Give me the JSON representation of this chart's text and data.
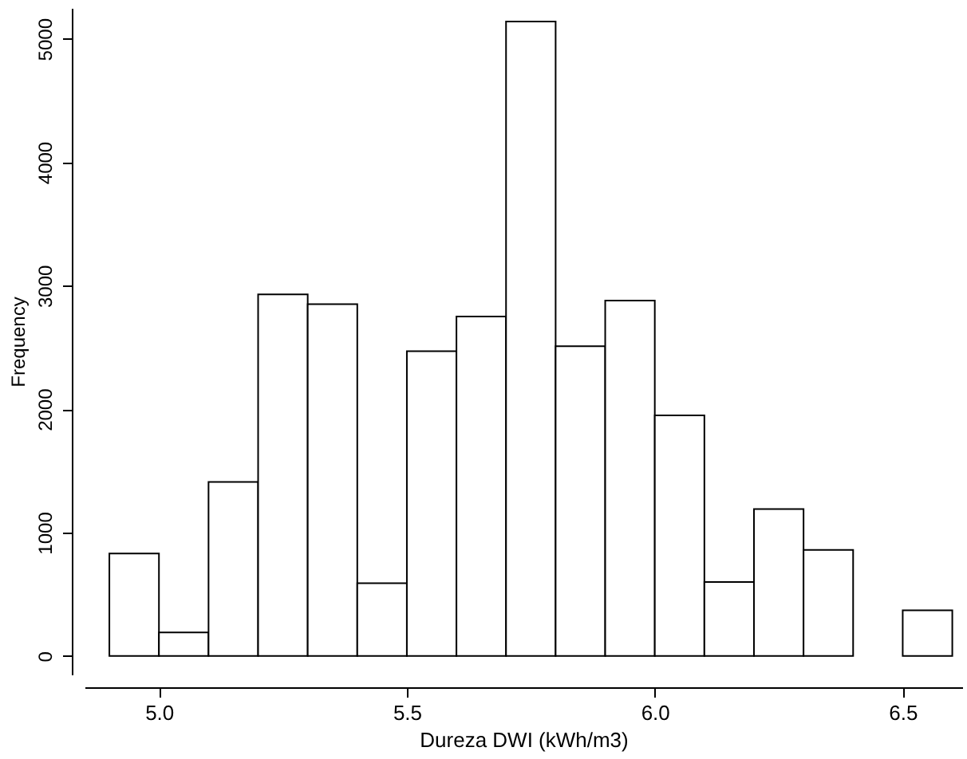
{
  "chart_data": {
    "type": "histogram",
    "xlabel": "Dureza DWI (kWh/m3)",
    "ylabel": "Frequency",
    "bins": [
      4.9,
      5.0,
      5.1,
      5.2,
      5.3,
      5.4,
      5.5,
      5.6,
      5.7,
      5.8,
      5.9,
      6.0,
      6.1,
      6.2,
      6.3,
      6.4,
      6.5,
      6.6
    ],
    "values": [
      830,
      190,
      1410,
      2930,
      2850,
      590,
      2470,
      2750,
      5140,
      2510,
      2880,
      1950,
      600,
      1190,
      860,
      0,
      370
    ],
    "color": "#ffffff",
    "xlim": [
      4.85,
      6.62
    ],
    "ylim": [
      -150,
      5250
    ],
    "xticks": [
      {
        "value": 5.0,
        "label": "5.0"
      },
      {
        "value": 5.5,
        "label": "5.5"
      },
      {
        "value": 6.0,
        "label": "6.0"
      },
      {
        "value": 6.5,
        "label": "6.5"
      }
    ],
    "yticks": [
      0,
      1000,
      2000,
      3000,
      4000,
      5000
    ],
    "grid": false
  }
}
